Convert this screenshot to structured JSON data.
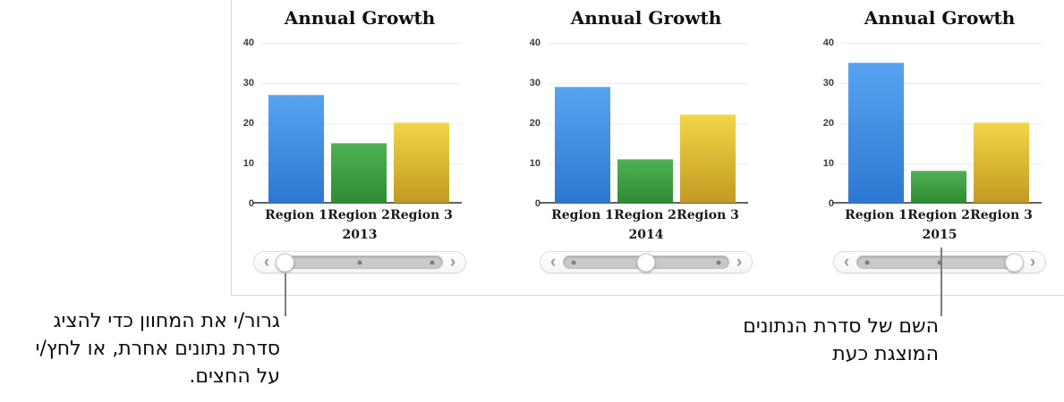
{
  "panel": {
    "background": "#ffffff",
    "border_color": "#d9d9d9"
  },
  "chart_data": [
    {
      "type": "bar",
      "title": "Annual Growth",
      "categories": [
        "Region 1",
        "Region 2",
        "Region 3"
      ],
      "values": [
        27,
        15,
        20
      ],
      "series_label": "2013",
      "xlabel": "",
      "ylabel": "",
      "ylim": [
        0,
        40
      ],
      "yticks": [
        0,
        10,
        20,
        30,
        40
      ],
      "grid": true,
      "legend": "none",
      "bar_colors": [
        {
          "top": "#58a4f0",
          "bottom": "#2d77d3"
        },
        {
          "top": "#4fb254",
          "bottom": "#2e8b33"
        },
        {
          "top": "#f2d647",
          "bottom": "#c29a23"
        }
      ],
      "slider": {
        "left_arrow": "‹",
        "right_arrow": "›",
        "thumb_position": "left",
        "dot_positions": [
          "center",
          "right"
        ]
      }
    },
    {
      "type": "bar",
      "title": "Annual Growth",
      "categories": [
        "Region 1",
        "Region 2",
        "Region 3"
      ],
      "values": [
        29,
        11,
        22
      ],
      "series_label": "2014",
      "xlabel": "",
      "ylabel": "",
      "ylim": [
        0,
        40
      ],
      "yticks": [
        0,
        10,
        20,
        30,
        40
      ],
      "grid": true,
      "legend": "none",
      "bar_colors": [
        {
          "top": "#58a4f0",
          "bottom": "#2d77d3"
        },
        {
          "top": "#4fb254",
          "bottom": "#2e8b33"
        },
        {
          "top": "#f2d647",
          "bottom": "#c29a23"
        }
      ],
      "slider": {
        "left_arrow": "‹",
        "right_arrow": "›",
        "thumb_position": "center",
        "dot_positions": [
          "left",
          "right"
        ]
      }
    },
    {
      "type": "bar",
      "title": "Annual Growth",
      "categories": [
        "Region 1",
        "Region 2",
        "Region 3"
      ],
      "values": [
        35,
        8,
        20
      ],
      "series_label": "2015",
      "xlabel": "",
      "ylabel": "",
      "ylim": [
        0,
        40
      ],
      "yticks": [
        0,
        10,
        20,
        30,
        40
      ],
      "grid": true,
      "legend": "none",
      "bar_colors": [
        {
          "top": "#58a4f0",
          "bottom": "#2d77d3"
        },
        {
          "top": "#4fb254",
          "bottom": "#2e8b33"
        },
        {
          "top": "#f2d647",
          "bottom": "#c29a23"
        }
      ],
      "slider": {
        "left_arrow": "‹",
        "right_arrow": "›",
        "thumb_position": "right",
        "dot_positions": [
          "left",
          "center"
        ]
      }
    }
  ],
  "annotations": {
    "left_callout": {
      "lines": [
        "גרור/י את המחוון כדי להציג",
        "סדרת נתונים אחרת, או לחץ/י",
        "על החצים."
      ]
    },
    "right_callout": {
      "lines": [
        "השם של סדרת הנתונים",
        "המוצגת כעת"
      ]
    }
  },
  "callout_line_color": "#7d7d7d"
}
